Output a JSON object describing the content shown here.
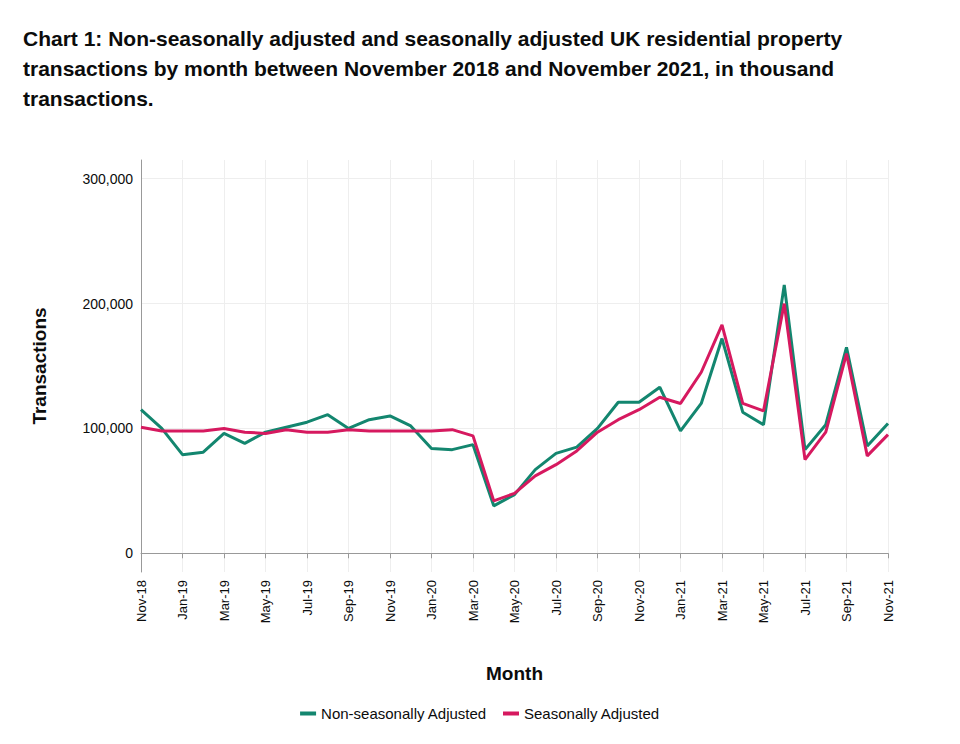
{
  "chart_data": {
    "type": "line",
    "title": "Chart 1: Non-seasonally adjusted and seasonally adjusted UK residential property transactions by month between November 2018 and November 2021, in thousand transactions.",
    "x_label": "Month",
    "y_label": "Transactions",
    "categories": [
      "Nov-18",
      null,
      "Jan-19",
      null,
      "Mar-19",
      null,
      "May-19",
      null,
      "Jul-19",
      null,
      "Sep-19",
      null,
      "Nov-19",
      null,
      "Jan-20",
      null,
      "Mar-20",
      null,
      "May-20",
      null,
      "Jul-20",
      null,
      "Sep-20",
      null,
      "Nov-20",
      null,
      "Jan-21",
      null,
      "Mar-21",
      null,
      "May-21",
      null,
      "Jul-21",
      null,
      "Sep-21",
      null,
      "Nov-21"
    ],
    "series": [
      {
        "name": "Non-seasonally Adjusted",
        "color": "#13866f",
        "values": [
          115000,
          100000,
          79000,
          81000,
          96000,
          88000,
          97000,
          101000,
          105000,
          111000,
          100000,
          107000,
          110000,
          102000,
          84000,
          83000,
          87000,
          38000,
          47000,
          67000,
          80000,
          85000,
          100000,
          121000,
          121000,
          133000,
          98000,
          120000,
          172000,
          113000,
          103000,
          215000,
          83000,
          103000,
          165000,
          86000,
          104000
        ]
      },
      {
        "name": "Seasonally Adjusted",
        "color": "#d6195f",
        "values": [
          101000,
          98000,
          98000,
          98000,
          100000,
          97000,
          96000,
          99000,
          97000,
          97000,
          99000,
          98000,
          98000,
          98000,
          98000,
          99000,
          94000,
          42000,
          48000,
          62000,
          71000,
          82000,
          97000,
          107000,
          115000,
          125000,
          120000,
          145000,
          183000,
          120000,
          114000,
          200000,
          75000,
          97000,
          160000,
          78000,
          95000
        ]
      }
    ],
    "ylim": [
      -15000,
      315000
    ],
    "yticks": [
      0,
      {
        "value": 100000,
        "label": "100,000"
      },
      {
        "value": 200000,
        "label": "200,000"
      },
      {
        "value": 300000,
        "label": "300,000"
      }
    ],
    "grid": true,
    "legend": "bottom"
  }
}
